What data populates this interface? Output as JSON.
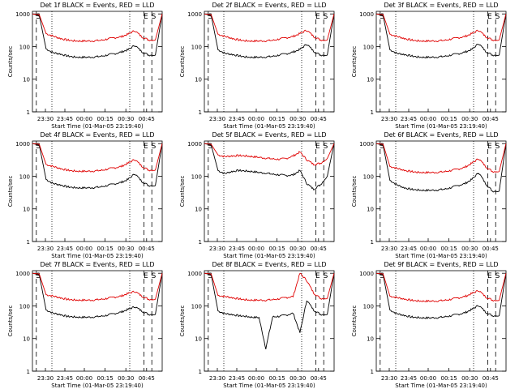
{
  "colors": {
    "events": "#000000",
    "lld": "#e00000",
    "axes": "#000000",
    "background": "#ffffff"
  },
  "common": {
    "xlabel": "Start Time (01-Mar-05 23:19:40)",
    "ylabel": "Counts/sec",
    "x_tick_labels": [
      "23:30",
      "23:45",
      "00:00",
      "00:15",
      "00:30",
      "00:45"
    ],
    "y_tick_labels": [
      "1",
      "10",
      "100",
      "1000"
    ],
    "marker_labels": [
      "S",
      "E",
      "S"
    ]
  },
  "chart_data": [
    {
      "type": "line",
      "title": "Det 1f BLACK = Events, RED = LLD",
      "yscale": "log",
      "ylim": [
        1,
        1200
      ],
      "xlim": [
        "23:19:40",
        "00:57:00"
      ],
      "series": [
        {
          "name": "Events",
          "color": "#000000",
          "values": [
            1000,
            900,
            85,
            65,
            60,
            52,
            48,
            47,
            47,
            48,
            50,
            55,
            60,
            68,
            80,
            110,
            70,
            55,
            55,
            1000
          ]
        },
        {
          "name": "LLD",
          "color": "#e00000",
          "values": [
            1000,
            950,
            250,
            210,
            180,
            160,
            150,
            148,
            148,
            150,
            155,
            170,
            185,
            200,
            240,
            310,
            200,
            160,
            160,
            1000
          ]
        }
      ]
    },
    {
      "type": "line",
      "title": "Det 2f BLACK = Events, RED = LLD",
      "yscale": "log",
      "ylim": [
        1,
        1200
      ],
      "xlim": [
        "23:19:40",
        "00:57:00"
      ],
      "series": [
        {
          "name": "Events",
          "color": "#000000",
          "values": [
            1000,
            900,
            80,
            62,
            58,
            52,
            48,
            47,
            47,
            48,
            50,
            55,
            60,
            68,
            82,
            120,
            72,
            55,
            55,
            1000
          ]
        },
        {
          "name": "LLD",
          "color": "#e00000",
          "values": [
            1000,
            950,
            240,
            205,
            180,
            160,
            150,
            148,
            148,
            150,
            155,
            170,
            185,
            205,
            250,
            320,
            205,
            160,
            160,
            1000
          ]
        }
      ]
    },
    {
      "type": "line",
      "title": "Det 3f BLACK = Events, RED = LLD",
      "yscale": "log",
      "ylim": [
        1,
        1200
      ],
      "xlim": [
        "23:19:40",
        "00:57:00"
      ],
      "series": [
        {
          "name": "Events",
          "color": "#000000",
          "values": [
            1000,
            900,
            80,
            62,
            58,
            52,
            48,
            47,
            47,
            48,
            50,
            55,
            60,
            68,
            82,
            125,
            72,
            55,
            55,
            1000
          ]
        },
        {
          "name": "LLD",
          "color": "#e00000",
          "values": [
            1000,
            950,
            240,
            205,
            180,
            160,
            150,
            148,
            148,
            150,
            155,
            170,
            185,
            205,
            250,
            320,
            205,
            160,
            160,
            1000
          ]
        }
      ]
    },
    {
      "type": "line",
      "title": "Det 4f BLACK = Events, RED = LLD",
      "yscale": "log",
      "ylim": [
        1,
        1200
      ],
      "xlim": [
        "23:19:40",
        "00:57:00"
      ],
      "series": [
        {
          "name": "Events",
          "color": "#000000",
          "values": [
            1000,
            900,
            80,
            60,
            55,
            48,
            45,
            44,
            44,
            45,
            47,
            52,
            58,
            65,
            80,
            120,
            70,
            52,
            52,
            1000
          ]
        },
        {
          "name": "LLD",
          "color": "#e00000",
          "values": [
            1000,
            950,
            230,
            200,
            175,
            155,
            145,
            142,
            142,
            145,
            150,
            165,
            180,
            200,
            250,
            330,
            205,
            155,
            155,
            1000
          ]
        }
      ]
    },
    {
      "type": "line",
      "title": "Det 5f BLACK = Events, RED = LLD",
      "yscale": "log",
      "ylim": [
        1,
        1200
      ],
      "xlim": [
        "23:19:40",
        "00:57:00"
      ],
      "series": [
        {
          "name": "Events",
          "color": "#000000",
          "values": [
            1000,
            900,
            150,
            120,
            140,
            150,
            145,
            140,
            130,
            125,
            115,
            110,
            105,
            110,
            150,
            60,
            40,
            55,
            100,
            1000
          ]
        },
        {
          "name": "LLD",
          "color": "#e00000",
          "values": [
            1000,
            950,
            450,
            400,
            420,
            430,
            420,
            400,
            380,
            360,
            340,
            330,
            350,
            420,
            550,
            320,
            230,
            250,
            350,
            1000
          ]
        }
      ]
    },
    {
      "type": "line",
      "title": "Det 6f BLACK = Events, RED = LLD",
      "yscale": "log",
      "ylim": [
        1,
        1200
      ],
      "xlim": [
        "23:19:40",
        "00:57:00"
      ],
      "series": [
        {
          "name": "Events",
          "color": "#000000",
          "values": [
            1000,
            900,
            75,
            55,
            45,
            40,
            38,
            37,
            37,
            38,
            40,
            45,
            52,
            60,
            80,
            130,
            60,
            35,
            35,
            1000
          ]
        },
        {
          "name": "LLD",
          "color": "#e00000",
          "values": [
            1000,
            950,
            200,
            175,
            155,
            140,
            132,
            130,
            130,
            132,
            138,
            150,
            165,
            190,
            250,
            350,
            200,
            140,
            140,
            1000
          ]
        }
      ]
    },
    {
      "type": "line",
      "title": "Det 7f BLACK = Events, RED = LLD",
      "yscale": "log",
      "ylim": [
        1,
        1200
      ],
      "xlim": [
        "23:19:40",
        "00:57:00"
      ],
      "series": [
        {
          "name": "Events",
          "color": "#000000",
          "values": [
            1000,
            900,
            75,
            60,
            55,
            48,
            46,
            45,
            45,
            46,
            48,
            52,
            58,
            65,
            78,
            95,
            70,
            55,
            55,
            1000
          ]
        },
        {
          "name": "LLD",
          "color": "#e00000",
          "values": [
            1000,
            950,
            220,
            200,
            180,
            160,
            152,
            150,
            150,
            152,
            158,
            170,
            185,
            200,
            240,
            280,
            200,
            160,
            160,
            1000
          ]
        }
      ]
    },
    {
      "type": "line",
      "title": "Det 8f BLACK = Events, RED = LLD",
      "yscale": "log",
      "ylim": [
        1,
        1200
      ],
      "xlim": [
        "23:19:40",
        "00:57:00"
      ],
      "series": [
        {
          "name": "Events",
          "color": "#000000",
          "values": [
            1000,
            900,
            70,
            58,
            55,
            50,
            48,
            45,
            44,
            5,
            46,
            48,
            52,
            60,
            15,
            150,
            75,
            55,
            55,
            1000
          ]
        },
        {
          "name": "LLD",
          "color": "#e00000",
          "values": [
            1000,
            950,
            210,
            195,
            180,
            165,
            155,
            150,
            150,
            150,
            155,
            165,
            180,
            195,
            1000,
            600,
            250,
            170,
            170,
            1000
          ]
        }
      ]
    },
    {
      "type": "line",
      "title": "Det 9f BLACK = Events, RED = LLD",
      "yscale": "log",
      "ylim": [
        1,
        1200
      ],
      "xlim": [
        "23:19:40",
        "00:57:00"
      ],
      "series": [
        {
          "name": "Events",
          "color": "#000000",
          "values": [
            1000,
            900,
            75,
            58,
            52,
            46,
            44,
            43,
            43,
            44,
            46,
            50,
            55,
            62,
            78,
            105,
            65,
            50,
            50,
            1000
          ]
        },
        {
          "name": "LLD",
          "color": "#e00000",
          "values": [
            1000,
            950,
            200,
            180,
            165,
            150,
            142,
            140,
            140,
            142,
            148,
            160,
            175,
            195,
            240,
            300,
            190,
            150,
            150,
            1000
          ]
        }
      ]
    }
  ]
}
